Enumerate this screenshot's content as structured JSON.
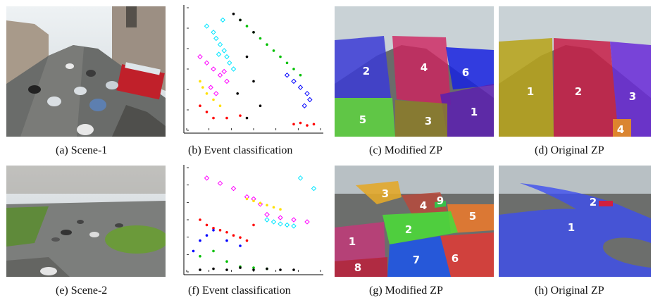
{
  "figure": {
    "panels": [
      {
        "id": "a",
        "caption": "(a)  Scene-1",
        "kind": "photo"
      },
      {
        "id": "b",
        "caption": "(b)  Event classification",
        "kind": "scatter"
      },
      {
        "id": "c",
        "caption": "(c)  Modified ZP",
        "kind": "zones",
        "zone_labels": [
          "1",
          "2",
          "3",
          "4",
          "5",
          "6"
        ],
        "zone_colors": [
          "#5a1fb0",
          "#3b3bd6",
          "#8c7d28",
          "#d0235f",
          "#5ed640",
          "#1722e0"
        ]
      },
      {
        "id": "d",
        "caption": "(d)  Original ZP",
        "kind": "zones",
        "zone_labels": [
          "1",
          "2",
          "3",
          "4"
        ],
        "zone_colors": [
          "#b7a41c",
          "#c81e48",
          "#6a2ad8",
          "#e08a2a"
        ]
      },
      {
        "id": "e",
        "caption": "(e)  Scene-2",
        "kind": "photo"
      },
      {
        "id": "f",
        "caption": "(f)  Event classification",
        "kind": "scatter"
      },
      {
        "id": "g",
        "caption": "(g)  Modified ZP",
        "kind": "zones",
        "zone_labels": [
          "1",
          "2",
          "3",
          "4",
          "5",
          "6",
          "7",
          "8",
          "9"
        ],
        "zone_colors": [
          "#c23a79",
          "#4dd83a",
          "#e3a82b",
          "#b74a3c",
          "#ee7a2a",
          "#e23a35",
          "#1f55e6",
          "#b8233e",
          "#37c04a"
        ]
      },
      {
        "id": "h",
        "caption": "(h)  Original ZP",
        "kind": "zones",
        "zone_labels": [
          "1",
          "2"
        ],
        "zone_colors": [
          "#3d4ef0",
          "#d02040"
        ]
      }
    ]
  },
  "chart_data": [
    {
      "type": "scatter",
      "series": [
        {
          "color": "#00e5ff",
          "marker": "diamond",
          "x": [
            0.15,
            0.2,
            0.22,
            0.25,
            0.28,
            0.3,
            0.32,
            0.35,
            0.27,
            0.24
          ],
          "y": [
            0.85,
            0.8,
            0.75,
            0.7,
            0.65,
            0.6,
            0.55,
            0.5,
            0.9,
            0.62
          ]
        },
        {
          "color": "#ff00ff",
          "marker": "diamond",
          "x": [
            0.1,
            0.15,
            0.2,
            0.25,
            0.3,
            0.18,
            0.22,
            0.28
          ],
          "y": [
            0.6,
            0.55,
            0.5,
            0.45,
            0.4,
            0.35,
            0.3,
            0.48
          ]
        },
        {
          "color": "#00c000",
          "marker": "dot",
          "x": [
            0.4,
            0.45,
            0.5,
            0.55,
            0.6,
            0.65,
            0.7,
            0.75,
            0.8,
            0.85
          ],
          "y": [
            0.9,
            0.85,
            0.8,
            0.75,
            0.7,
            0.65,
            0.6,
            0.55,
            0.5,
            0.45
          ]
        },
        {
          "color": "#000000",
          "marker": "dot",
          "x": [
            0.35,
            0.4,
            0.45,
            0.5,
            0.55,
            0.45,
            0.5,
            0.38
          ],
          "y": [
            0.95,
            0.9,
            0.6,
            0.4,
            0.2,
            0.1,
            0.8,
            0.3
          ]
        },
        {
          "color": "#ff0000",
          "marker": "dot",
          "x": [
            0.1,
            0.15,
            0.2,
            0.3,
            0.4,
            0.8,
            0.85,
            0.9,
            0.95
          ],
          "y": [
            0.2,
            0.15,
            0.1,
            0.1,
            0.12,
            0.05,
            0.06,
            0.04,
            0.05
          ]
        },
        {
          "color": "#0000ff",
          "marker": "diamond",
          "x": [
            0.75,
            0.8,
            0.85,
            0.9,
            0.88,
            0.92
          ],
          "y": [
            0.45,
            0.4,
            0.35,
            0.3,
            0.2,
            0.25
          ]
        },
        {
          "color": "#ffe000",
          "marker": "dot",
          "x": [
            0.1,
            0.12,
            0.15,
            0.2,
            0.25
          ],
          "y": [
            0.4,
            0.35,
            0.3,
            0.25,
            0.2
          ]
        }
      ]
    },
    {
      "type": "scatter",
      "series": [
        {
          "color": "#ff00ff",
          "marker": "diamond",
          "x": [
            0.15,
            0.25,
            0.35,
            0.45,
            0.55,
            0.6,
            0.7,
            0.8,
            0.9,
            0.5
          ],
          "y": [
            0.9,
            0.85,
            0.8,
            0.72,
            0.65,
            0.55,
            0.52,
            0.5,
            0.48,
            0.7
          ]
        },
        {
          "color": "#ffe000",
          "marker": "dot",
          "x": [
            0.45,
            0.5,
            0.55,
            0.6,
            0.65,
            0.7
          ],
          "y": [
            0.7,
            0.68,
            0.66,
            0.64,
            0.62,
            0.6
          ]
        },
        {
          "color": "#00e5ff",
          "marker": "diamond",
          "x": [
            0.6,
            0.65,
            0.7,
            0.75,
            0.8,
            0.85,
            0.95
          ],
          "y": [
            0.5,
            0.48,
            0.46,
            0.45,
            0.44,
            0.9,
            0.8
          ]
        },
        {
          "color": "#ff0000",
          "marker": "dot",
          "x": [
            0.1,
            0.15,
            0.2,
            0.25,
            0.3,
            0.35,
            0.4,
            0.45,
            0.5
          ],
          "y": [
            0.5,
            0.45,
            0.42,
            0.4,
            0.38,
            0.35,
            0.33,
            0.3,
            0.45
          ]
        },
        {
          "color": "#0000ff",
          "marker": "dot",
          "x": [
            0.05,
            0.1,
            0.15,
            0.2,
            0.3,
            0.4
          ],
          "y": [
            0.2,
            0.3,
            0.35,
            0.4,
            0.3,
            0.25
          ]
        },
        {
          "color": "#00c000",
          "marker": "dot",
          "x": [
            0.1,
            0.2,
            0.3,
            0.4,
            0.5,
            0.6
          ],
          "y": [
            0.15,
            0.2,
            0.1,
            0.05,
            0.04,
            0.03
          ]
        },
        {
          "color": "#000000",
          "marker": "dot",
          "x": [
            0.1,
            0.2,
            0.3,
            0.4,
            0.5,
            0.6,
            0.7,
            0.8
          ],
          "y": [
            0.02,
            0.03,
            0.02,
            0.04,
            0.02,
            0.03,
            0.02,
            0.02
          ]
        }
      ]
    }
  ]
}
